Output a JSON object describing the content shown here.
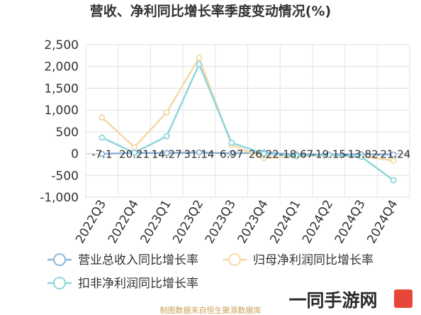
{
  "chart_data": {
    "type": "line",
    "title": "营收、净利同比增长率季度变动情况(%)",
    "categories": [
      "2022Q3",
      "2022Q4",
      "2023Q1",
      "2023Q2",
      "2023Q3",
      "2023Q4",
      "2024Q1",
      "2024Q2",
      "2024Q3",
      "2024Q4"
    ],
    "ylim": [
      -1000,
      2500
    ],
    "yticks": [
      "2,500",
      "2,000",
      "1,500",
      "1,000",
      "500",
      "0",
      "-500",
      "-1,000"
    ],
    "ytick_values": [
      2500,
      2000,
      1500,
      1000,
      500,
      0,
      -500,
      -1000
    ],
    "grid": true,
    "legend_position": "bottom",
    "series": [
      {
        "name": "营业总收入同比增长率",
        "color": "#8fb5dc",
        "values": [
          -7.1,
          20.21,
          14.27,
          31.14,
          6.97,
          26.22,
          -18.67,
          -19.15,
          -13.82,
          -21.24
        ]
      },
      {
        "name": "归母净利润同比增长率",
        "color": "#f5d9a6",
        "values": [
          830,
          150,
          950,
          2200,
          200,
          -100,
          -60,
          -40,
          -60,
          -160
        ]
      },
      {
        "name": "扣非净利润同比增长率",
        "color": "#8ed6dc",
        "values": [
          370,
          20,
          400,
          2050,
          250,
          0,
          -50,
          -30,
          -70,
          -610
        ]
      }
    ],
    "data_labels": [
      "-7.1",
      "20.21",
      "14.27",
      "31.14",
      "6.97",
      "26.22",
      "-18.67",
      "-19.15",
      "-13.82",
      "-21.24"
    ]
  },
  "source": "制图数据来自恒生聚源数据库",
  "watermark": "一同手游网"
}
